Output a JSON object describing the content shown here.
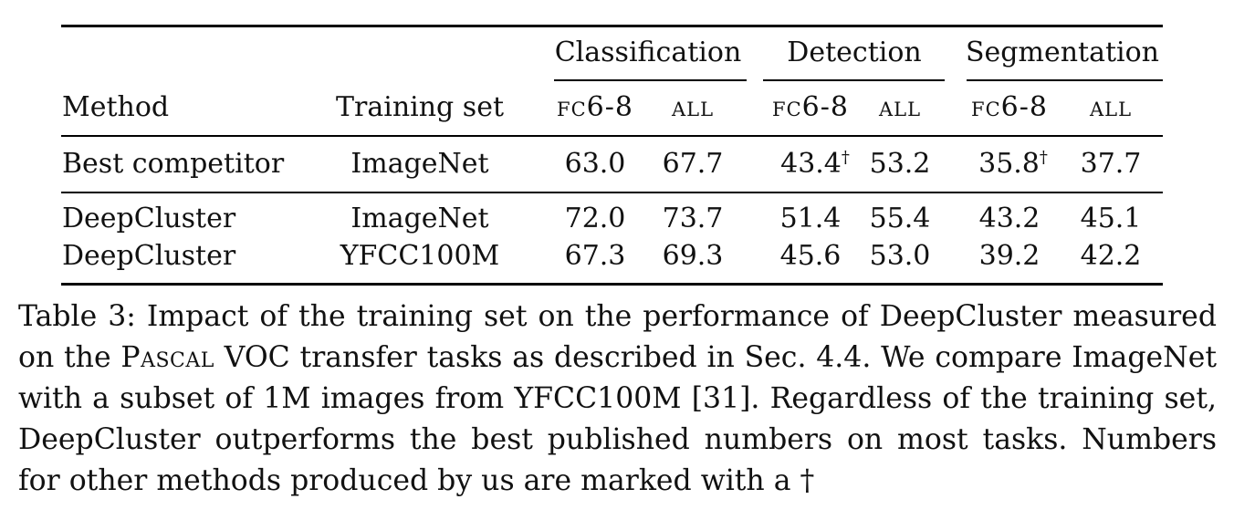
{
  "table": {
    "groups": [
      "Classification",
      "Detection",
      "Segmentation"
    ],
    "headers": {
      "method": "Method",
      "training_set": "Training set",
      "sub": [
        "fc6-8",
        "all",
        "fc6-8",
        "all",
        "fc6-8",
        "all"
      ]
    },
    "rows": [
      {
        "method": "Best competitor",
        "training_set": "ImageNet",
        "values": [
          "63.0",
          "67.7",
          "43.4",
          "53.2",
          "35.8",
          "37.7"
        ],
        "marks": [
          "",
          "",
          "†",
          "",
          "†",
          ""
        ]
      },
      {
        "method": "DeepCluster",
        "training_set": "ImageNet",
        "values": [
          "72.0",
          "73.7",
          "51.4",
          "55.4",
          "43.2",
          "45.1"
        ],
        "marks": [
          "",
          "",
          "",
          "",
          "",
          ""
        ]
      },
      {
        "method": "DeepCluster",
        "training_set": "YFCC100M",
        "values": [
          "67.3",
          "69.3",
          "45.6",
          "53.0",
          "39.2",
          "42.2"
        ],
        "marks": [
          "",
          "",
          "",
          "",
          "",
          ""
        ]
      }
    ]
  },
  "caption": {
    "part1": "Table 3: Impact of the training set on the performance of DeepCluster measured on the ",
    "pascal": "Pascal",
    "part2": " VOC transfer tasks as described in Sec. 4.4. We compare ImageNet with a subset of 1M images from YFCC100M [31]. Regardless of the training set, DeepCluster outperforms the best published numbers on most tasks. Numbers for other methods produced by us are marked with a †"
  }
}
